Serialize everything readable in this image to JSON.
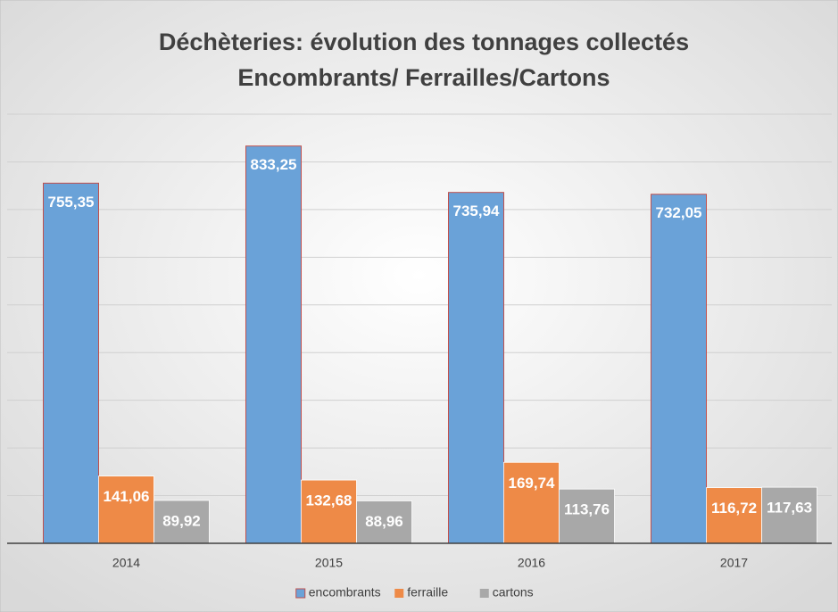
{
  "chart_data": {
    "type": "bar",
    "title": [
      "Déchèteries: évolution des tonnages collectés",
      "Encombrants/ Ferrailles/Cartons"
    ],
    "categories": [
      "2014",
      "2015",
      "2016",
      "2017"
    ],
    "series": [
      {
        "name": "encombrants",
        "color": "#6aa2d8",
        "values": [
          755.35,
          833.25,
          735.94,
          732.05
        ],
        "value_labels": [
          "755,35",
          "833,25",
          "735,94",
          "732,05"
        ]
      },
      {
        "name": "ferraille",
        "color": "#ee8a47",
        "values": [
          141.06,
          132.68,
          169.74,
          116.72
        ],
        "value_labels": [
          "141,06",
          "132,68",
          "169,74",
          "116,72"
        ]
      },
      {
        "name": "cartons",
        "color": "#a8a8a8",
        "values": [
          89.92,
          88.96,
          113.76,
          117.63
        ],
        "value_labels": [
          "89,92",
          "88,96",
          "113,76",
          "117,63"
        ]
      }
    ],
    "ylim": [
      0,
      900
    ],
    "yticks": [
      0,
      100,
      200,
      300,
      400,
      500,
      600,
      700,
      800,
      900
    ],
    "grid": true,
    "legend": "bottom"
  }
}
